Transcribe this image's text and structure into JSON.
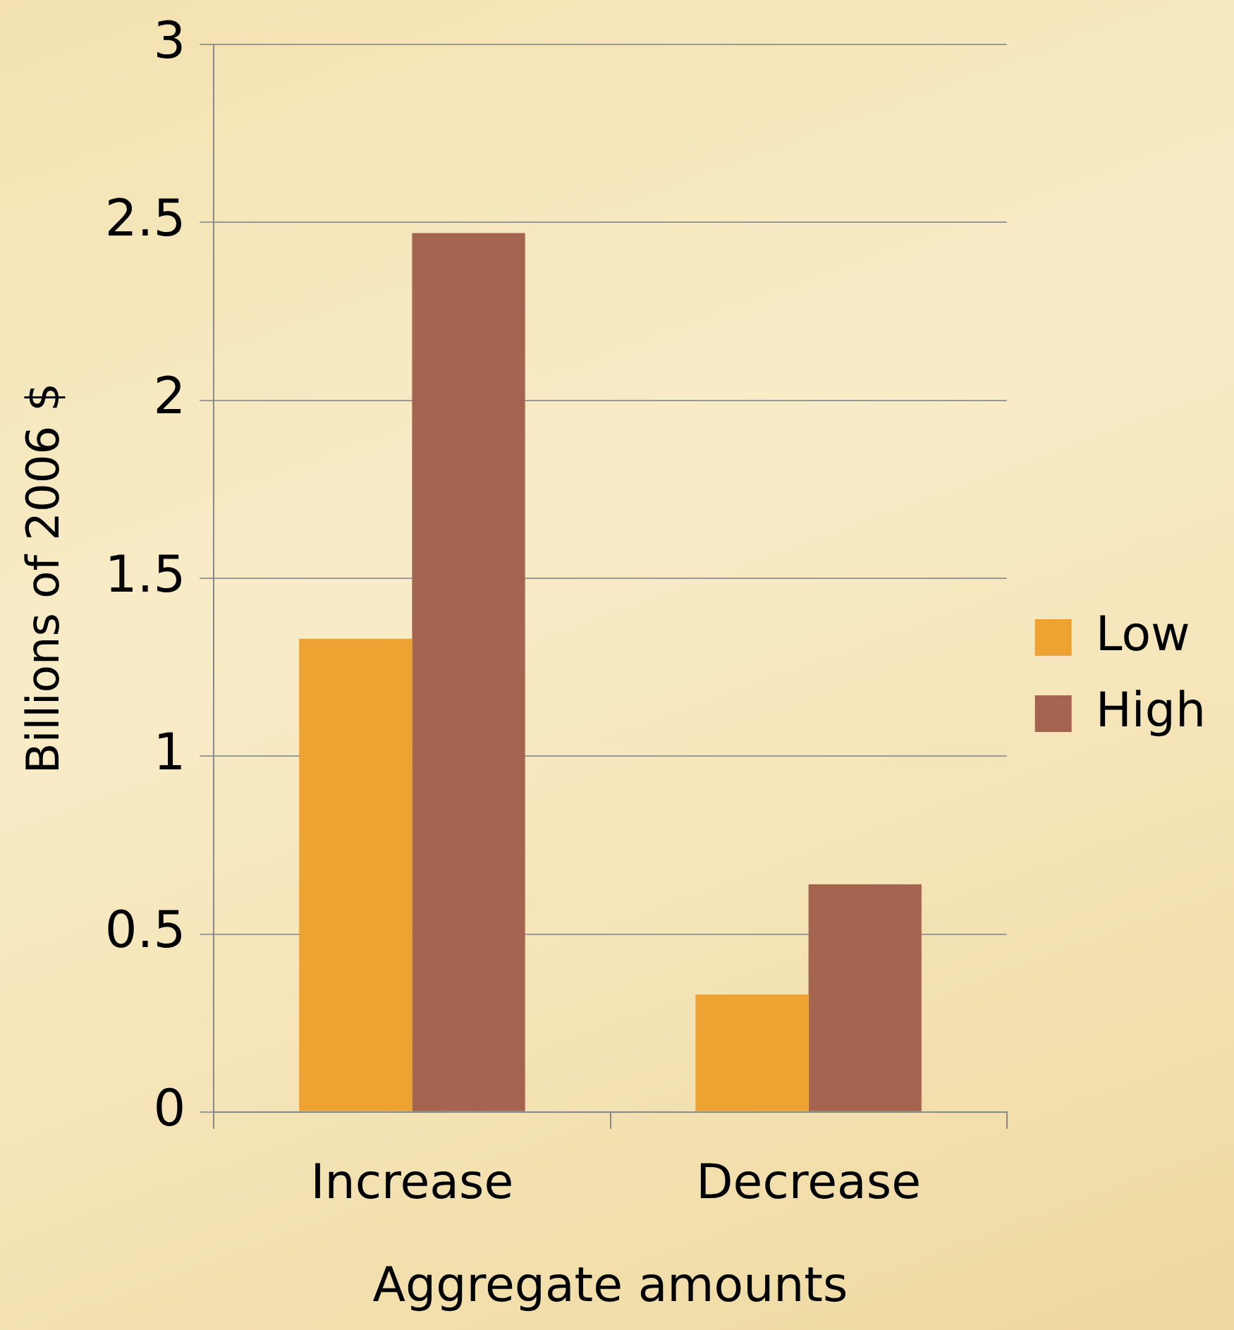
{
  "chart_data": {
    "type": "bar",
    "ylabel": "Billions of 2006 $",
    "xlabel": "Aggregate amounts",
    "categories": [
      "Increase",
      "Decrease"
    ],
    "series": [
      {
        "name": "Low",
        "color": "#eea232",
        "values": [
          1.33,
          0.33
        ]
      },
      {
        "name": "High",
        "color": "#a46450",
        "values": [
          2.47,
          0.64
        ]
      }
    ],
    "ylim": [
      0,
      3
    ],
    "yticks": [
      0,
      0.5,
      1,
      1.5,
      2,
      2.5,
      3
    ],
    "grid": "y",
    "legend": "right"
  }
}
